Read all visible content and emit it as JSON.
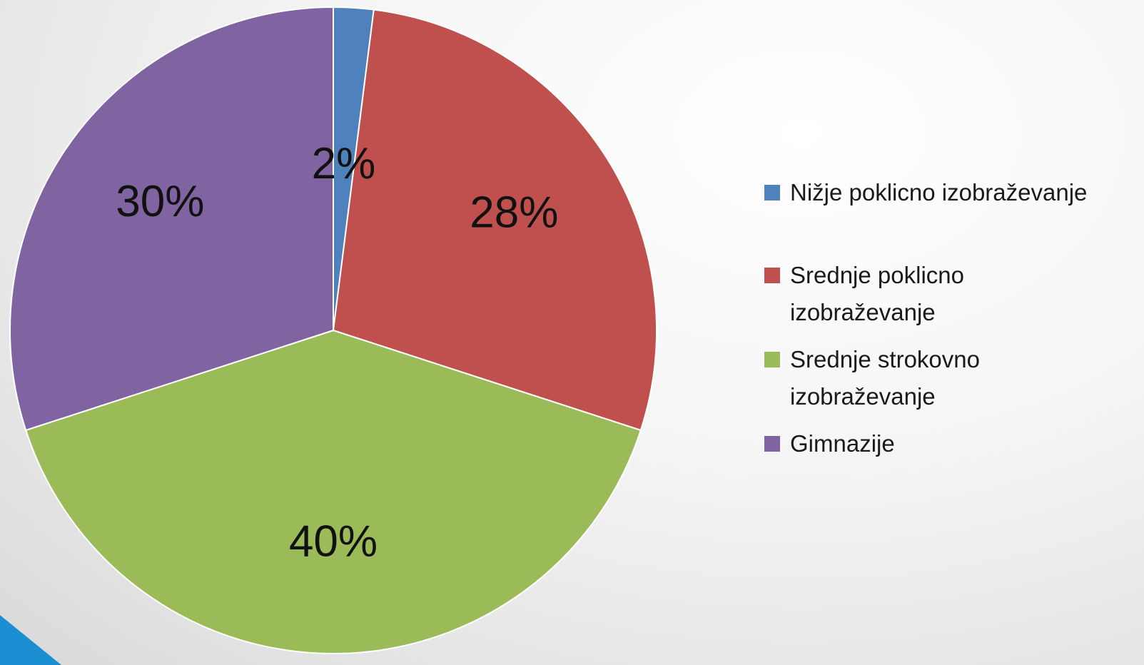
{
  "chart_data": {
    "type": "pie",
    "title": "",
    "start_angle_deg": 0,
    "direction": "clockwise",
    "legend_position": "right",
    "slices": [
      {
        "label": "Nižje poklicno izobraževanje",
        "value": 2,
        "display": "2%",
        "color": "#4F81BD"
      },
      {
        "label": "Srednje poklicno izobraževanje",
        "value": 28,
        "display": "28%",
        "color": "#C0504D"
      },
      {
        "label": "Srednje strokovno izobraževanje",
        "value": 40,
        "display": "40%",
        "color": "#9BBB59"
      },
      {
        "label": "Gimnazije",
        "value": 30,
        "display": "30%",
        "color": "#8064A2"
      }
    ]
  },
  "legend": {
    "items": [
      {
        "label": "Nižje poklicno izobraževanje",
        "color": "#4F81BD"
      },
      {
        "label": "Srednje poklicno izobraževanje",
        "color": "#C0504D"
      },
      {
        "label": "Srednje strokovno izobraževanje",
        "color": "#9BBB59"
      },
      {
        "label": "Gimnazije",
        "color": "#8064A2"
      }
    ]
  },
  "decoration": {
    "accent_color": "#1B8FD2"
  }
}
